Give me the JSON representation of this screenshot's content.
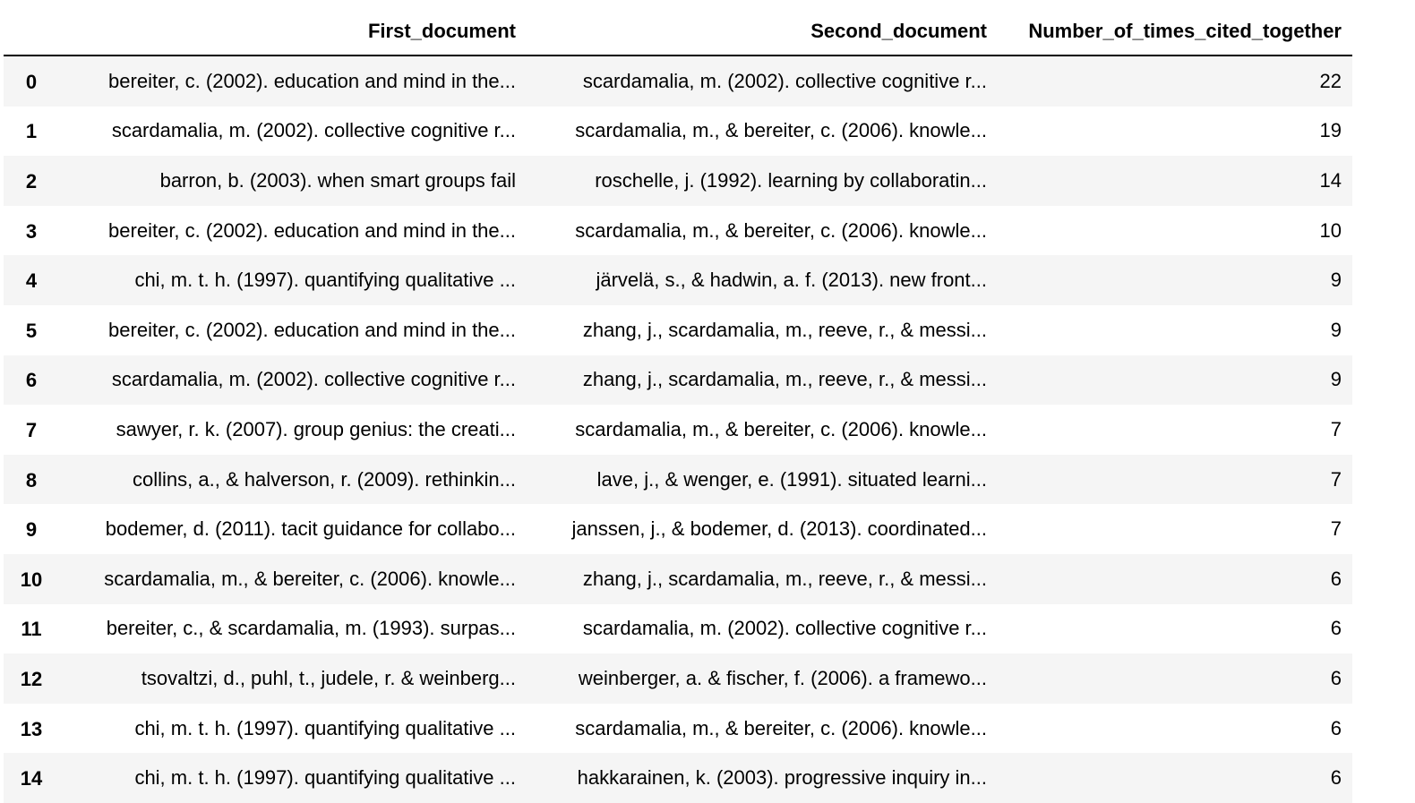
{
  "table": {
    "columns": [
      "",
      "First_document",
      "Second_document",
      "Number_of_times_cited_together"
    ],
    "rows": [
      {
        "index": "0",
        "first": "bereiter, c. (2002). education and mind in the...",
        "second": "scardamalia, m. (2002). collective cognitive r...",
        "count": "22"
      },
      {
        "index": "1",
        "first": "scardamalia, m. (2002). collective cognitive r...",
        "second": "scardamalia, m., & bereiter, c. (2006). knowle...",
        "count": "19"
      },
      {
        "index": "2",
        "first": "barron, b. (2003). when smart groups fail",
        "second": "roschelle, j. (1992). learning by collaboratin...",
        "count": "14"
      },
      {
        "index": "3",
        "first": "bereiter, c. (2002). education and mind in the...",
        "second": "scardamalia, m., & bereiter, c. (2006). knowle...",
        "count": "10"
      },
      {
        "index": "4",
        "first": "chi, m. t. h. (1997). quantifying qualitative ...",
        "second": "järvelä, s., & hadwin, a. f. (2013). new front...",
        "count": "9"
      },
      {
        "index": "5",
        "first": "bereiter, c. (2002). education and mind in the...",
        "second": "zhang, j., scardamalia, m., reeve, r., & messi...",
        "count": "9"
      },
      {
        "index": "6",
        "first": "scardamalia, m. (2002). collective cognitive r...",
        "second": "zhang, j., scardamalia, m., reeve, r., & messi...",
        "count": "9"
      },
      {
        "index": "7",
        "first": "sawyer, r. k. (2007). group genius: the creati...",
        "second": "scardamalia, m., & bereiter, c. (2006). knowle...",
        "count": "7"
      },
      {
        "index": "8",
        "first": "collins, a., & halverson, r. (2009). rethinkin...",
        "second": "lave, j., & wenger, e. (1991). situated learni...",
        "count": "7"
      },
      {
        "index": "9",
        "first": "bodemer, d. (2011). tacit guidance for collabo...",
        "second": "janssen, j., & bodemer, d. (2013). coordinated...",
        "count": "7"
      },
      {
        "index": "10",
        "first": "scardamalia, m., & bereiter, c. (2006). knowle...",
        "second": "zhang, j., scardamalia, m., reeve, r., & messi...",
        "count": "6"
      },
      {
        "index": "11",
        "first": "bereiter, c., & scardamalia, m. (1993). surpas...",
        "second": "scardamalia, m. (2002). collective cognitive r...",
        "count": "6"
      },
      {
        "index": "12",
        "first": "tsovaltzi, d., puhl, t., judele, r. & weinberg...",
        "second": "weinberger, a. & fischer, f. (2006). a framewo...",
        "count": "6"
      },
      {
        "index": "13",
        "first": "chi, m. t. h. (1997). quantifying qualitative ...",
        "second": "scardamalia, m., & bereiter, c. (2006). knowle...",
        "count": "6"
      },
      {
        "index": "14",
        "first": "chi, m. t. h. (1997). quantifying qualitative ...",
        "second": "hakkarainen, k. (2003). progressive inquiry in...",
        "count": "6"
      }
    ]
  }
}
